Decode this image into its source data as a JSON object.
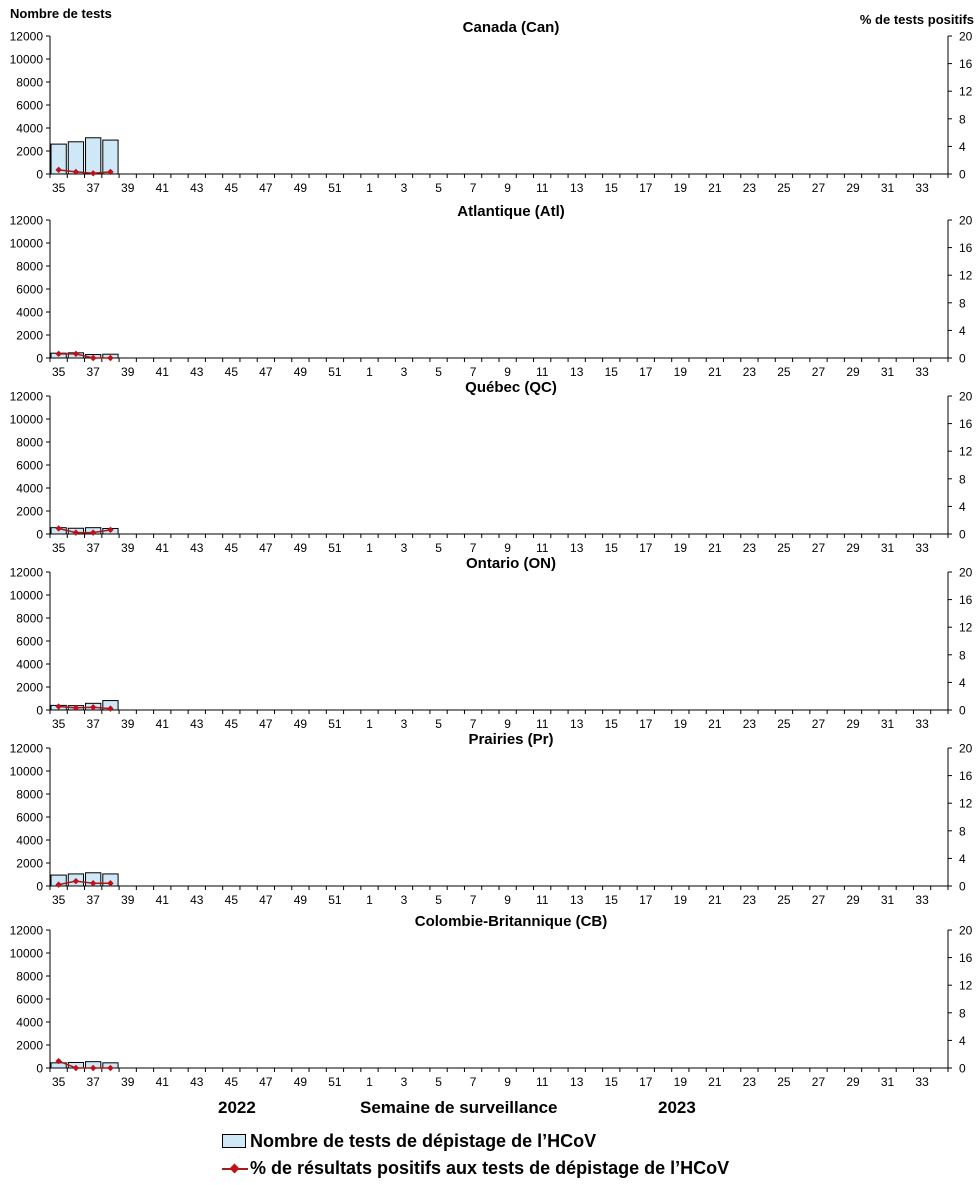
{
  "header": {
    "left_axis_label": "Nombre de tests",
    "right_axis_label": "% de tests positifs"
  },
  "footer": {
    "year_left": "2022",
    "year_right": "2023",
    "xlabel": "Semaine de surveillance"
  },
  "legend": {
    "bars_label": "Nombre de tests de dépistage de l’HCoV",
    "line_label": "% de résultats positifs aux tests de dépistage de l’HCoV"
  },
  "colors": {
    "bar_fill": "#cfe8f7",
    "bar_stroke": "#000000",
    "line": "#a51c1c",
    "marker": "#c0101a"
  },
  "x_axis": {
    "weeks": [
      35,
      36,
      37,
      38,
      39,
      40,
      41,
      42,
      43,
      44,
      45,
      46,
      47,
      48,
      49,
      50,
      51,
      52,
      1,
      2,
      3,
      4,
      5,
      6,
      7,
      8,
      9,
      10,
      11,
      12,
      13,
      14,
      15,
      16,
      17,
      18,
      19,
      20,
      21,
      22,
      23,
      24,
      25,
      26,
      27,
      28,
      29,
      30,
      31,
      32,
      33,
      34
    ],
    "tick_labels": [
      "35",
      "37",
      "39",
      "41",
      "43",
      "45",
      "47",
      "49",
      "51",
      "1",
      "3",
      "5",
      "7",
      "9",
      "11",
      "13",
      "15",
      "17",
      "19",
      "21",
      "23",
      "25",
      "27",
      "29",
      "31",
      "33"
    ]
  },
  "chart_data": [
    {
      "type": "bar",
      "title": "Canada (Can)",
      "ylim": [
        0,
        12000
      ],
      "y_ticks": [
        0,
        2000,
        4000,
        6000,
        8000,
        10000,
        12000
      ],
      "y2lim": [
        0,
        20
      ],
      "y2_ticks": [
        0,
        4,
        8,
        12,
        16,
        20
      ],
      "categories": [
        35,
        36,
        37,
        38
      ],
      "series": [
        {
          "values": [
            2600,
            2800,
            3150,
            2950
          ]
        },
        {
          "axis": "right",
          "values": [
            0.6,
            0.3,
            0.1,
            0.3
          ]
        }
      ]
    },
    {
      "type": "bar",
      "title": "Atlantique (Atl)",
      "ylim": [
        0,
        12000
      ],
      "y_ticks": [
        0,
        2000,
        4000,
        6000,
        8000,
        10000,
        12000
      ],
      "y2lim": [
        0,
        20
      ],
      "y2_ticks": [
        0,
        4,
        8,
        12,
        16,
        20
      ],
      "categories": [
        35,
        36,
        37,
        38
      ],
      "series": [
        {
          "values": [
            420,
            450,
            300,
            330
          ]
        },
        {
          "axis": "right",
          "values": [
            0.6,
            0.6,
            0.0,
            0.0
          ]
        }
      ]
    },
    {
      "type": "bar",
      "title": "Québec (QC)",
      "ylim": [
        0,
        12000
      ],
      "y_ticks": [
        0,
        2000,
        4000,
        6000,
        8000,
        10000,
        12000
      ],
      "y2lim": [
        0,
        20
      ],
      "y2_ticks": [
        0,
        4,
        8,
        12,
        16,
        20
      ],
      "categories": [
        35,
        36,
        37,
        38
      ],
      "series": [
        {
          "values": [
            550,
            500,
            550,
            480
          ]
        },
        {
          "axis": "right",
          "values": [
            0.8,
            0.2,
            0.2,
            0.6
          ]
        }
      ]
    },
    {
      "type": "bar",
      "title": "Ontario (ON)",
      "ylim": [
        0,
        12000
      ],
      "y_ticks": [
        0,
        2000,
        4000,
        6000,
        8000,
        10000,
        12000
      ],
      "y2lim": [
        0,
        20
      ],
      "y2_ticks": [
        0,
        4,
        8,
        12,
        16,
        20
      ],
      "categories": [
        35,
        36,
        37,
        38
      ],
      "series": [
        {
          "values": [
            400,
            380,
            580,
            820
          ]
        },
        {
          "axis": "right",
          "values": [
            0.5,
            0.3,
            0.4,
            0.2
          ]
        }
      ]
    },
    {
      "type": "bar",
      "title": "Prairies (Pr)",
      "ylim": [
        0,
        12000
      ],
      "y_ticks": [
        0,
        2000,
        4000,
        6000,
        8000,
        10000,
        12000
      ],
      "y2lim": [
        0,
        20
      ],
      "y2_ticks": [
        0,
        4,
        8,
        12,
        16,
        20
      ],
      "categories": [
        35,
        36,
        37,
        38
      ],
      "series": [
        {
          "values": [
            950,
            1050,
            1150,
            1050
          ]
        },
        {
          "axis": "right",
          "values": [
            0.2,
            0.7,
            0.4,
            0.4
          ]
        }
      ]
    },
    {
      "type": "bar",
      "title": "Colombie-Britannique (CB)",
      "ylim": [
        0,
        12000
      ],
      "y_ticks": [
        0,
        2000,
        4000,
        6000,
        8000,
        10000,
        12000
      ],
      "y2lim": [
        0,
        20
      ],
      "y2_ticks": [
        0,
        4,
        8,
        12,
        16,
        20
      ],
      "categories": [
        35,
        36,
        37,
        38
      ],
      "series": [
        {
          "values": [
            450,
            480,
            550,
            450
          ]
        },
        {
          "axis": "right",
          "values": [
            1.0,
            0.0,
            0.0,
            0.0
          ]
        }
      ]
    }
  ]
}
